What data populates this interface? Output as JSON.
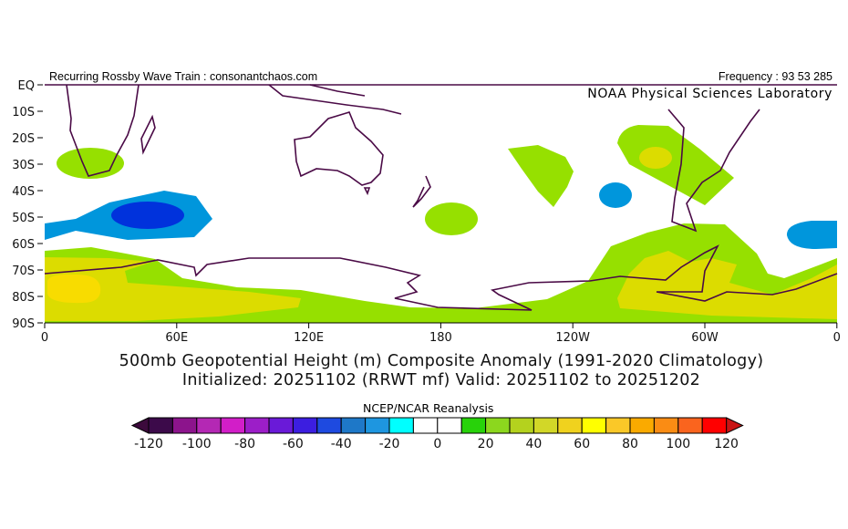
{
  "header": {
    "left": "Recurring Rossby Wave Train : consonantchaos.com",
    "right": "Frequency : 93 53 285",
    "credit": "NOAA Physical Sciences Laboratory"
  },
  "map": {
    "lat_labels": [
      "EQ",
      "10S",
      "20S",
      "30S",
      "40S",
      "50S",
      "60S",
      "70S",
      "80S",
      "90S"
    ],
    "lon_labels": [
      "0",
      "60E",
      "120E",
      "180",
      "120W",
      "60W",
      "0"
    ],
    "anomaly_colors": {
      "cyan_blue": "#0096dc",
      "dark_blue": "#0032dc",
      "green": "#96e000",
      "olive": "#dcdc00",
      "yellow": "#f8dc00"
    },
    "coast_color": "#4a0a46"
  },
  "titles": {
    "line1": "500mb Geopotential Height (m) Composite Anomaly (1991-2020 Climatology)",
    "line2": "Initialized: 20251102 (RRWT mf) Valid: 20251102 to 20251202"
  },
  "colorbar": {
    "source": "NCEP/NCAR Reanalysis",
    "labels": [
      "-120",
      "-100",
      "-80",
      "-60",
      "-40",
      "-20",
      "0",
      "20",
      "40",
      "60",
      "80",
      "100",
      "120"
    ],
    "under_color": "#3c0a3c",
    "over_color": "#c81414",
    "colors": [
      "#3c0a4a",
      "#8c148c",
      "#b428b4",
      "#d21ec8",
      "#9c1ec8",
      "#6a1ad8",
      "#3c1ee0",
      "#1e4ae0",
      "#1e78c8",
      "#1e96e0",
      "#00ffff",
      "#ffffff",
      "#ffffff",
      "#28d20a",
      "#8cd71e",
      "#b4d21e",
      "#d2d728",
      "#f0d21e",
      "#ffff00",
      "#fac828",
      "#faaa00",
      "#fa8c14",
      "#fa641e",
      "#ff0000"
    ]
  }
}
